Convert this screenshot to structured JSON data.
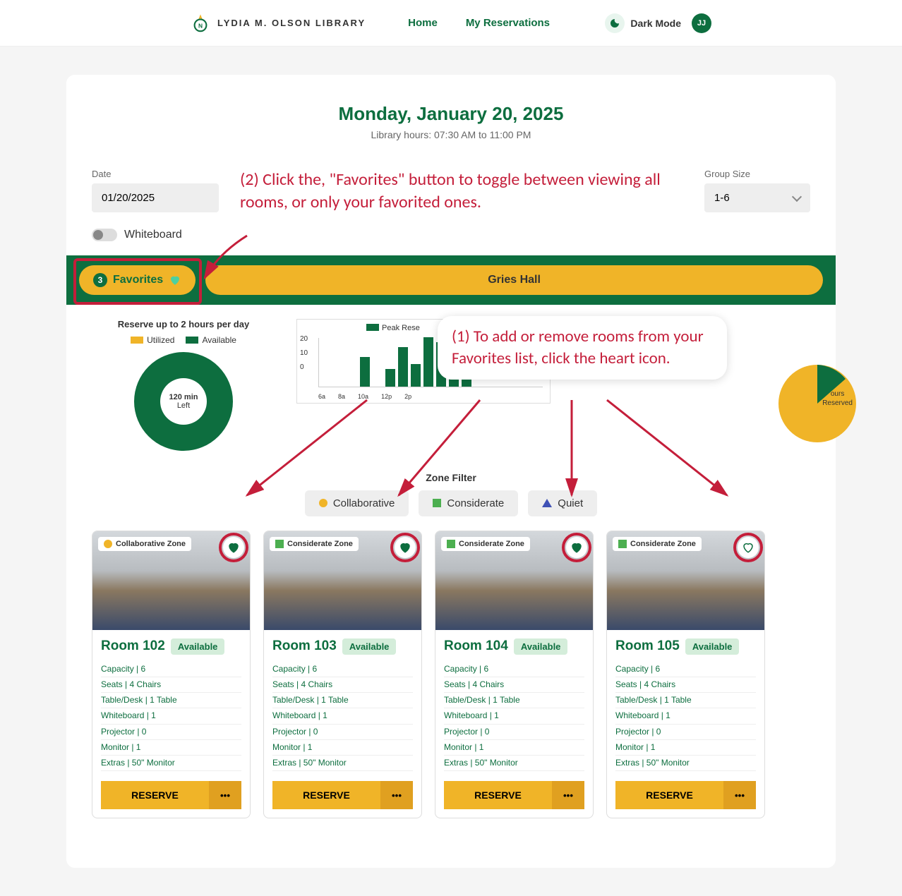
{
  "header": {
    "logo_text": "LYDIA M. OLSON LIBRARY",
    "nav": {
      "home": "Home",
      "reservations": "My Reservations"
    },
    "dark_mode": "Dark Mode",
    "avatar": "JJ"
  },
  "page": {
    "date_title": "Monday, January 20, 2025",
    "hours": "Library hours: 07:30 AM to 11:00 PM"
  },
  "filters": {
    "date_label": "Date",
    "date_value": "01/20/2025",
    "group_label": "Group Size",
    "group_value": "1-6",
    "whiteboard": "Whiteboard"
  },
  "annotations": {
    "ann2": "(2) Click the, \"Favorites\" button to toggle between viewing all rooms, or only your favorited ones.",
    "ann1": "(1) To add or remove rooms from your Favorites list, click the heart icon."
  },
  "tabs": {
    "fav_count": "3",
    "fav_label": "Favorites",
    "hall": "Gries Hall"
  },
  "stats": {
    "donut_title": "Reserve up to 2 hours per day",
    "utilized": "Utilized",
    "available": "Available",
    "donut_main": "120 min",
    "donut_sub": "Left",
    "bar_title": "Peak Rese",
    "y_labels": [
      "20",
      "10",
      "0"
    ],
    "x_labels": [
      "6a",
      "8a",
      "10a",
      "12p",
      "2p"
    ],
    "bar_values": [
      0,
      0,
      0,
      12,
      0,
      7,
      16,
      9,
      20,
      18,
      15,
      12,
      0
    ],
    "zone_filter_label": "Zone Filter",
    "collab": "Collaborative",
    "consid": "Considerate",
    "quiet": "Quiet",
    "reserved_label1": "ours",
    "reserved_label2": "Reserved"
  },
  "rooms": [
    {
      "zone": "Collaborative Zone",
      "zone_type": "orange",
      "favorited": true,
      "name": "Room 102",
      "status": "Available",
      "capacity": "Capacity | 6",
      "seats": "Seats | 4 Chairs",
      "table": "Table/Desk | 1 Table",
      "whiteboard": "Whiteboard | 1",
      "projector": "Projector | 0",
      "monitor": "Monitor | 1",
      "extras": "Extras | 50\" Monitor"
    },
    {
      "zone": "Considerate Zone",
      "zone_type": "green",
      "favorited": true,
      "name": "Room 103",
      "status": "Available",
      "capacity": "Capacity | 6",
      "seats": "Seats | 4 Chairs",
      "table": "Table/Desk | 1 Table",
      "whiteboard": "Whiteboard | 1",
      "projector": "Projector | 0",
      "monitor": "Monitor | 1",
      "extras": "Extras | 50\" Monitor"
    },
    {
      "zone": "Considerate Zone",
      "zone_type": "green",
      "favorited": true,
      "name": "Room 104",
      "status": "Available",
      "capacity": "Capacity | 6",
      "seats": "Seats | 4 Chairs",
      "table": "Table/Desk | 1 Table",
      "whiteboard": "Whiteboard | 1",
      "projector": "Projector | 0",
      "monitor": "Monitor | 1",
      "extras": "Extras | 50\" Monitor"
    },
    {
      "zone": "Considerate Zone",
      "zone_type": "green",
      "favorited": false,
      "name": "Room 105",
      "status": "Available",
      "capacity": "Capacity | 6",
      "seats": "Seats | 4 Chairs",
      "table": "Table/Desk | 1 Table",
      "whiteboard": "Whiteboard | 1",
      "projector": "Projector | 0",
      "monitor": "Monitor | 1",
      "extras": "Extras | 50\" Monitor"
    }
  ],
  "actions": {
    "reserve": "RESERVE",
    "more": "•••"
  },
  "colors": {
    "brand_green": "#0d6e3f",
    "brand_yellow": "#f0b428",
    "annotation_red": "#c41e3a"
  }
}
